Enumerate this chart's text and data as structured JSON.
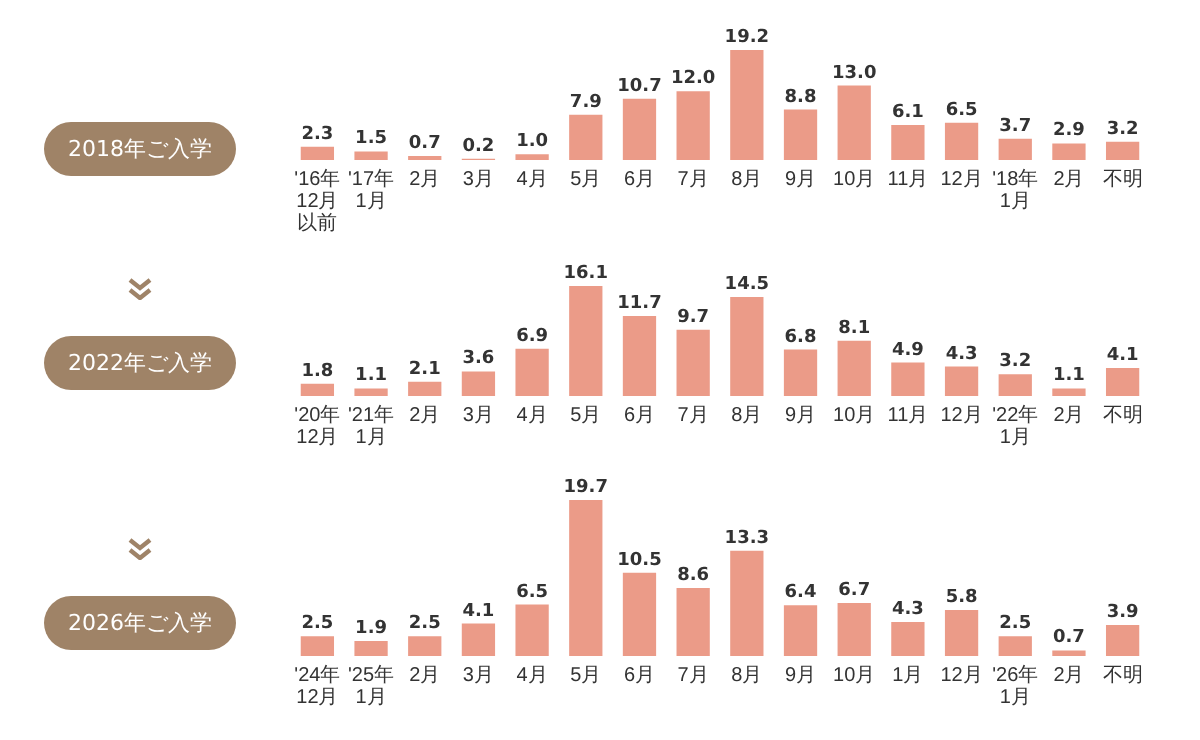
{
  "chart_data": [
    {
      "type": "bar",
      "title": "2018年ご入学",
      "color": "#eb9b88",
      "categories": [
        "'16年12月以前",
        "'17年1月",
        "2月",
        "3月",
        "4月",
        "5月",
        "6月",
        "7月",
        "8月",
        "9月",
        "10月",
        "11月",
        "12月",
        "'18年1月",
        "2月",
        "不明"
      ],
      "values": [
        2.3,
        1.5,
        0.7,
        0.2,
        1.0,
        7.9,
        10.7,
        12.0,
        19.2,
        8.8,
        13.0,
        6.1,
        6.5,
        3.7,
        2.9,
        3.2
      ],
      "value_labels": [
        "2.3",
        "1.5",
        "0.7",
        "0.2",
        "1.0",
        "7.9",
        "10.7",
        "12.0",
        "19.2",
        "8.8",
        "13.0",
        "6.1",
        "6.5",
        "3.7",
        "2.9",
        "3.2"
      ]
    },
    {
      "type": "bar",
      "title": "2022年ご入学",
      "color": "#eb9b88",
      "categories": [
        "'20年12月",
        "'21年1月",
        "2月",
        "3月",
        "4月",
        "5月",
        "6月",
        "7月",
        "8月",
        "9月",
        "10月",
        "11月",
        "12月",
        "'22年1月",
        "2月",
        "不明"
      ],
      "values": [
        1.8,
        1.1,
        2.1,
        3.6,
        6.9,
        16.1,
        11.7,
        9.7,
        14.5,
        6.8,
        8.1,
        4.9,
        4.3,
        3.2,
        1.1,
        4.1
      ],
      "value_labels": [
        "1.8",
        "1.1",
        "2.1",
        "3.6",
        "6.9",
        "16.1",
        "11.7",
        "9.7",
        "14.5",
        "6.8",
        "8.1",
        "4.9",
        "4.3",
        "3.2",
        "1.1",
        "4.1"
      ]
    },
    {
      "type": "bar",
      "title": "2026年ご入学",
      "color": "#eb9b88",
      "categories": [
        "'24年12月",
        "'25年1月",
        "2月",
        "3月",
        "4月",
        "5月",
        "6月",
        "7月",
        "8月",
        "9月",
        "10月",
        "1月",
        "12月",
        "'26年1月",
        "2月",
        "不明"
      ],
      "values": [
        2.5,
        1.9,
        2.5,
        4.1,
        6.5,
        19.7,
        10.5,
        8.6,
        13.3,
        6.4,
        6.7,
        4.3,
        5.8,
        2.5,
        0.7,
        3.9
      ],
      "value_labels": [
        "2.5",
        "1.9",
        "2.5",
        "4.1",
        "6.5",
        "19.7",
        "10.5",
        "8.6",
        "13.3",
        "6.4",
        "6.7",
        "4.3",
        "5.8",
        "2.5",
        "0.7",
        "3.9"
      ]
    }
  ]
}
